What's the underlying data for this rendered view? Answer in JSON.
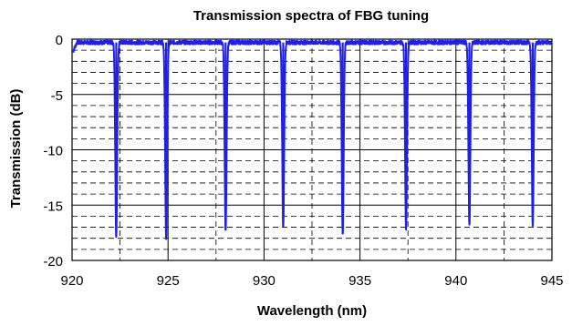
{
  "chart_data": {
    "type": "line",
    "title": "Transmission spectra of FBG tuning",
    "xlabel": "Wavelength (nm)",
    "ylabel": "Transmission (dB)",
    "xlim": [
      920,
      945
    ],
    "ylim": [
      -20,
      0
    ],
    "xticks": [
      920,
      925,
      930,
      935,
      940,
      945
    ],
    "yticks": [
      0,
      -5,
      -10,
      -15,
      -20
    ],
    "major_grid": true,
    "minor_grid_dashed": true,
    "minor_y_step": 1,
    "minor_x_step": 2.5,
    "baseline_db": -0.3,
    "dips": [
      {
        "center_nm": 922.3,
        "depth_db": -17.8
      },
      {
        "center_nm": 924.9,
        "depth_db": -17.9
      },
      {
        "center_nm": 928.0,
        "depth_db": -17.3
      },
      {
        "center_nm": 931.0,
        "depth_db": -17.0
      },
      {
        "center_nm": 934.1,
        "depth_db": -17.6
      },
      {
        "center_nm": 937.4,
        "depth_db": -17.1
      },
      {
        "center_nm": 940.7,
        "depth_db": -16.8
      },
      {
        "center_nm": 944.0,
        "depth_db": -16.8
      }
    ],
    "series_color": "#1f1fe6"
  }
}
